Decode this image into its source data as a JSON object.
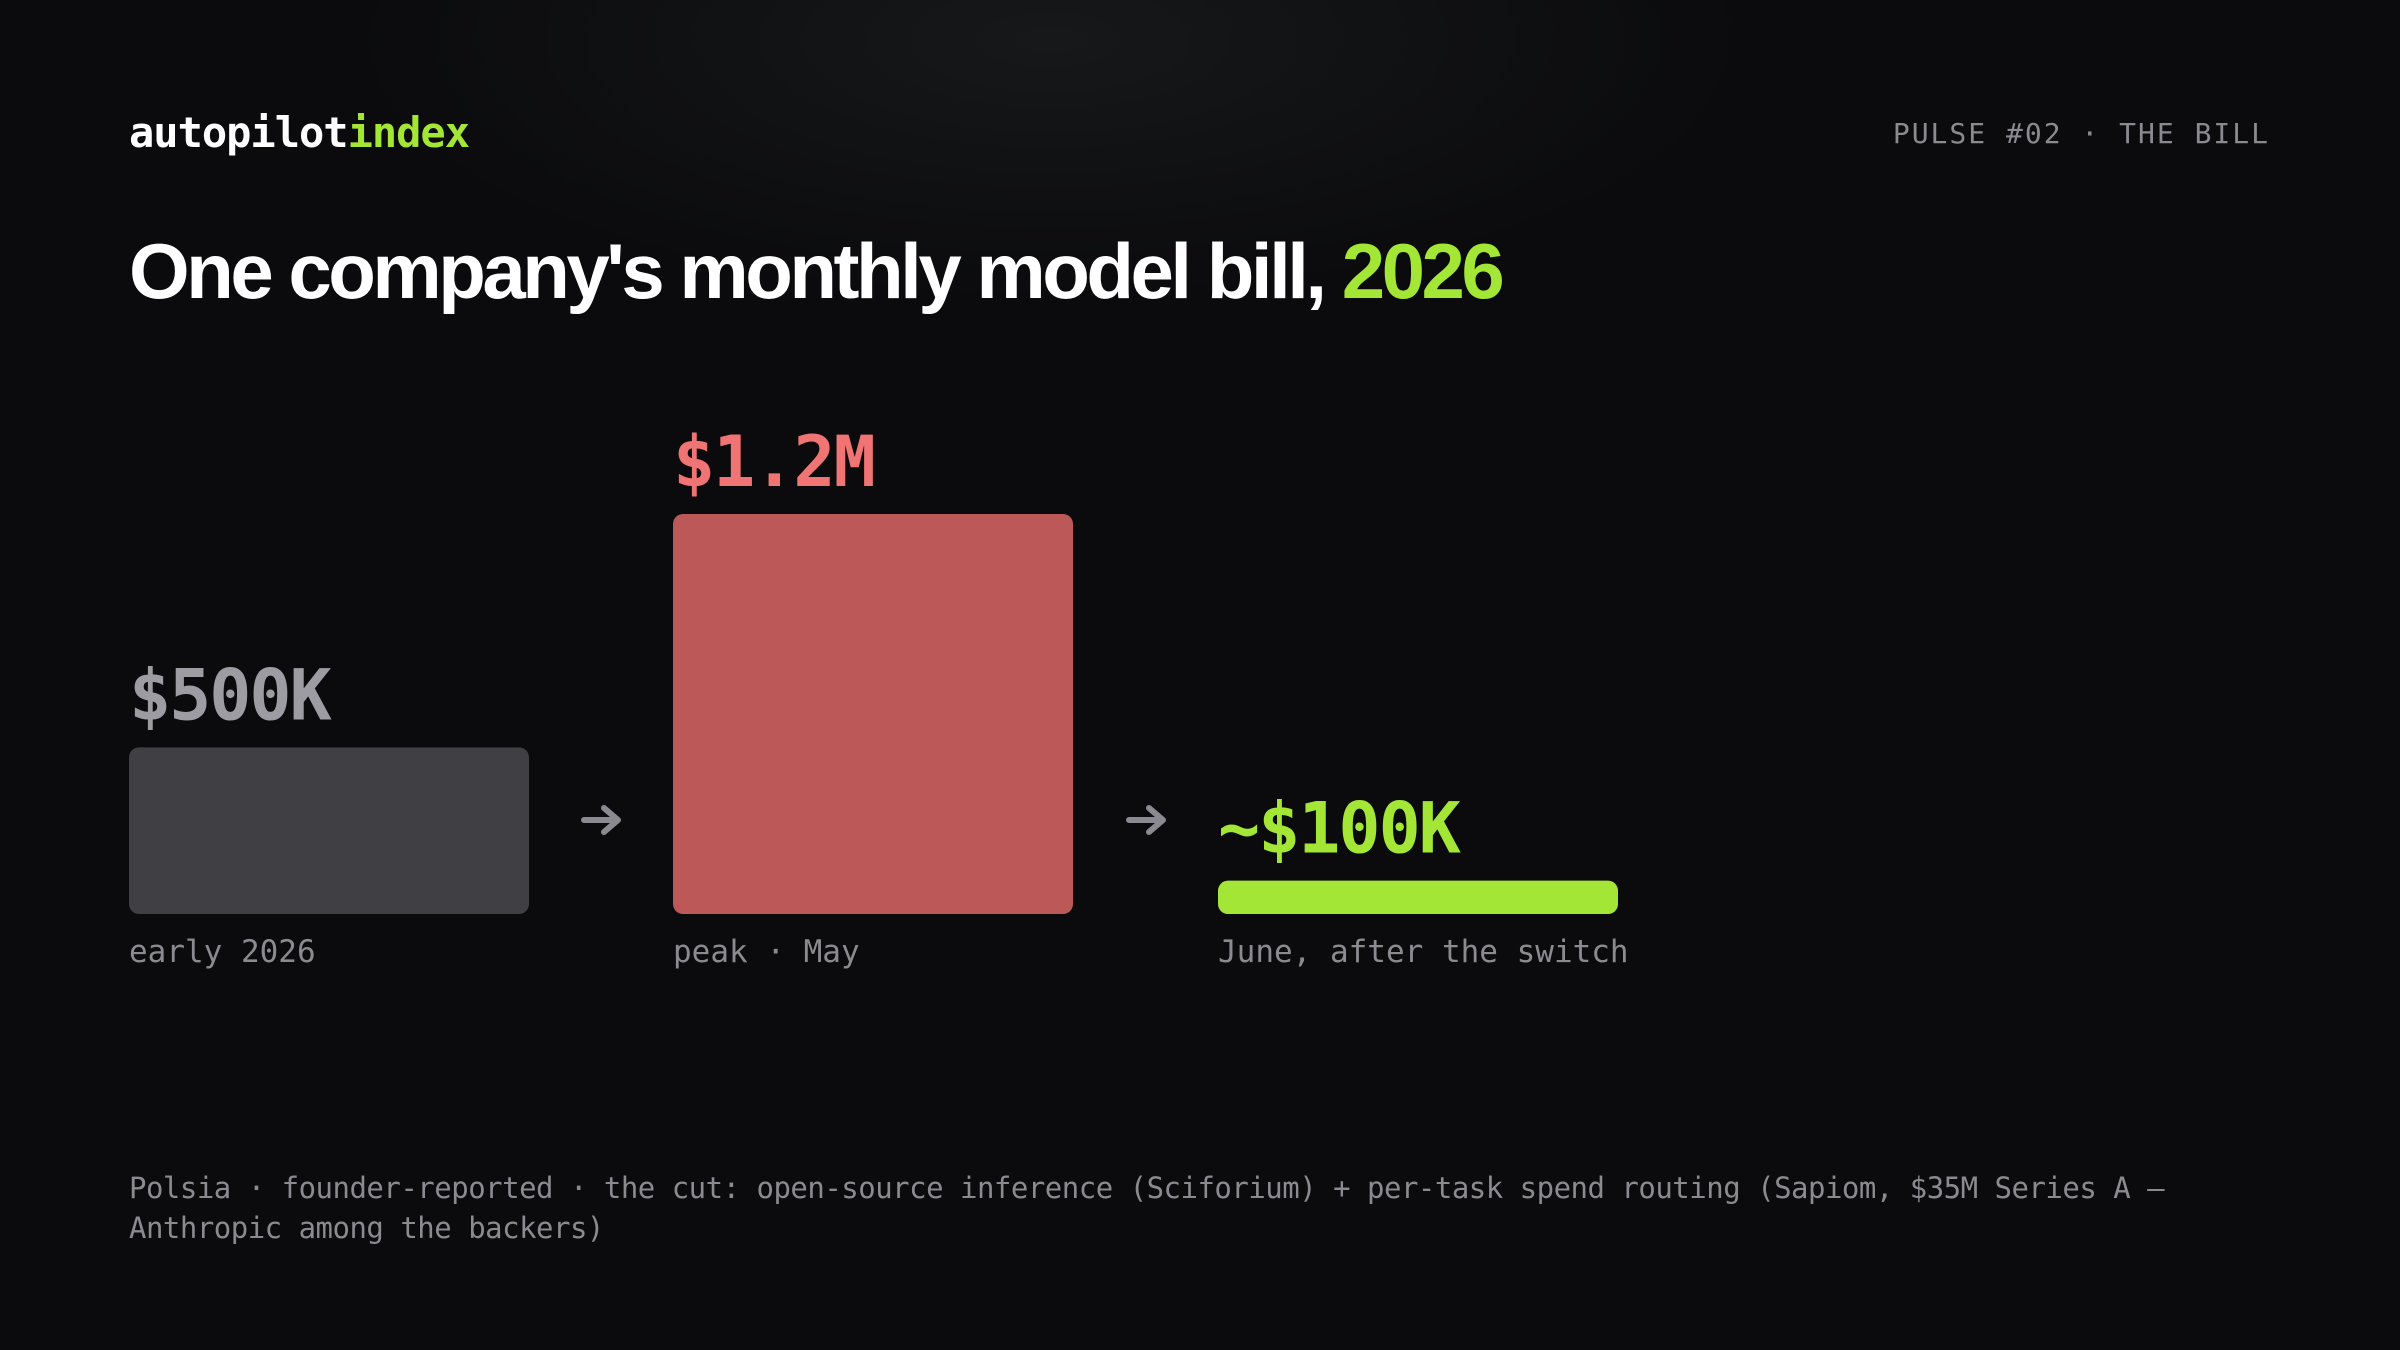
{
  "brand": {
    "name": "autopilot",
    "accent": "index"
  },
  "header": {
    "tag": "PULSE #02 · THE BILL"
  },
  "chart_data": {
    "type": "bar",
    "title": "One company's monthly model bill,",
    "title_highlight": "2026",
    "categories": [
      "early 2026",
      "peak · May",
      "June, after the switch"
    ],
    "values": [
      500000,
      1200000,
      100000
    ],
    "value_labels": [
      "$500K",
      "$1.2M",
      "~$100K"
    ],
    "colors": [
      "#3f3f44",
      "#bc5858",
      "#a3e635"
    ],
    "label_colors": [
      "#9c9ca2",
      "#f07474",
      "#a3e635"
    ]
  },
  "footnote": "Polsia · founder-reported · the cut: open-source inference (Sciforium) + per-task spend routing (Sapiom, $35M Series A — Anthropic among the backers)"
}
